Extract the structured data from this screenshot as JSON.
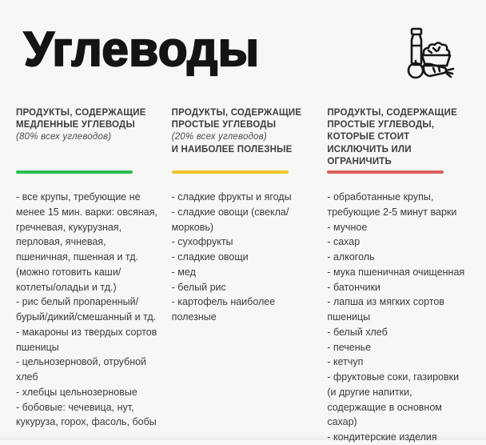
{
  "title": "Углеводы",
  "colors": {
    "background": "#f7f7f5",
    "green": "#2ebd4f",
    "yellow": "#eec62f",
    "red": "#d85f58"
  },
  "columns": [
    {
      "title": "ПРОДУКТЫ, СОДЕРЖАЩИЕ МЕДЛЕННЫЕ УГЛЕВОДЫ",
      "note": "(80% всех углеводов)",
      "title2": "",
      "bar_color": "#2ebd4f",
      "items": [
        "- все крупы, требующие не менее 15 мин. варки: овсяная, гречневая, кукурузная, перловая, ячневая, пшеничная, пшенная и тд. (можно готовить каши/котлеты/оладьи и тд.)",
        "- рис белый пропаренный/бурый/дикий/смешанный и тд.",
        "- макароны из твердых сортов пшеницы",
        "- цельнозерновой, отрубной хлеб",
        "- хлебцы цельнозерновые",
        "- бобовые: чечевица, нут, кукуруза, горох, фасоль, бобы"
      ]
    },
    {
      "title": "ПРОДУКТЫ, СОДЕРЖАЩИЕ ПРОСТЫЕ УГЛЕВОДЫ",
      "note": "(20% всех углеводов)",
      "title2": "И НАИБОЛЕЕ ПОЛЕЗНЫЕ",
      "bar_color": "#eec62f",
      "items": [
        "- сладкие фрукты и ягоды",
        "- сладкие овощи (свекла/морковь)",
        "- сухофрукты",
        "- сладкие овощи",
        "- мед",
        "- белый рис",
        "- картофель наиболее полезные"
      ]
    },
    {
      "title": "ПРОДУКТЫ, СОДЕРЖАЩИЕ ПРОСТЫЕ УГЛЕВОДЫ, КОТОРЫЕ СТОИТ ИСКЛЮЧИТЬ ИЛИ ОГРАНИЧИТЬ",
      "note": "",
      "title2": "",
      "bar_color": "#d85f58",
      "items": [
        "- обработанные крупы, требующие 2-5 минут варки",
        "- мучное",
        "- сахар",
        "- алкоголь",
        "- мука пшеничная очищенная",
        "- батончики",
        "- лапша из мягких сортов пшеницы",
        "- белый хлеб",
        "- печенье",
        "- кетчуп",
        "- фруктовые соки, газировки (и другие напитки, содержащие в основном сахар)",
        "- кондитерские изделия"
      ]
    }
  ]
}
